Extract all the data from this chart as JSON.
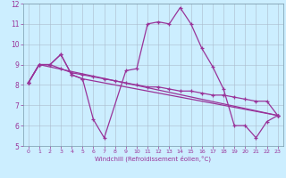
{
  "xlabel": "Windchill (Refroidissement éolien,°C)",
  "xlim": [
    -0.5,
    23.5
  ],
  "ylim": [
    5,
    12
  ],
  "yticks": [
    5,
    6,
    7,
    8,
    9,
    10,
    11,
    12
  ],
  "xticks": [
    0,
    1,
    2,
    3,
    4,
    5,
    6,
    7,
    8,
    9,
    10,
    11,
    12,
    13,
    14,
    15,
    16,
    17,
    18,
    19,
    20,
    21,
    22,
    23
  ],
  "background_color": "#cceeff",
  "line_color": "#993399",
  "grid_color": "#aabbcc",
  "line1_x": [
    0,
    1,
    2,
    3,
    4,
    5,
    6,
    7,
    9,
    10,
    11,
    12,
    13,
    14,
    15,
    16,
    17,
    18,
    19,
    20,
    21,
    22,
    23
  ],
  "line1_y": [
    8.1,
    9.0,
    9.0,
    9.5,
    8.5,
    8.3,
    6.3,
    5.4,
    8.7,
    8.8,
    11.0,
    11.1,
    11.0,
    11.8,
    11.0,
    9.8,
    8.9,
    7.8,
    6.0,
    6.0,
    5.4,
    6.2,
    6.5
  ],
  "line2_x": [
    0,
    1,
    2,
    3,
    4,
    5,
    6,
    7,
    8,
    9,
    10,
    11,
    12,
    13,
    14,
    15,
    16,
    17,
    18,
    19,
    20,
    21,
    22,
    23
  ],
  "line2_y": [
    8.1,
    9.0,
    9.0,
    8.8,
    8.6,
    8.5,
    8.4,
    8.3,
    8.2,
    8.1,
    8.0,
    7.9,
    7.9,
    7.8,
    7.7,
    7.7,
    7.6,
    7.5,
    7.5,
    7.4,
    7.3,
    7.2,
    7.2,
    6.5
  ],
  "line3_x": [
    0,
    1,
    2,
    3,
    4,
    5,
    23
  ],
  "line3_y": [
    8.1,
    9.0,
    9.0,
    9.5,
    8.5,
    8.3,
    6.5
  ],
  "line4_x": [
    0,
    1,
    23
  ],
  "line4_y": [
    8.1,
    9.0,
    6.5
  ]
}
